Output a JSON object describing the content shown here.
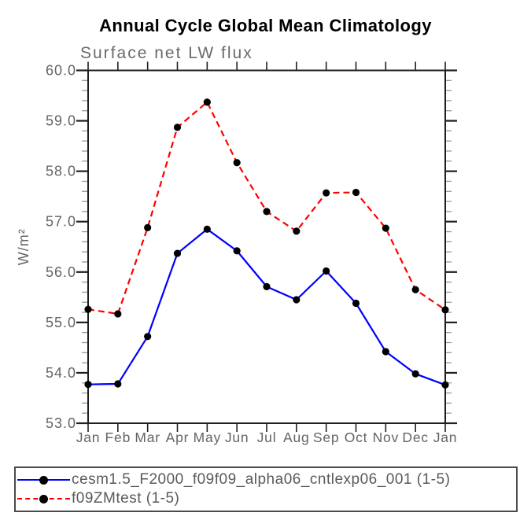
{
  "title": "Annual Cycle Global Mean Climatology",
  "subtitle": "Surface net LW flux",
  "ylabel": "W/m²",
  "legend": {
    "items": [
      {
        "label": "cesm1.5_F2000_f09f09_alpha06_cntlexp06_001 (1-5)",
        "color": "#0000ff",
        "style": "solid"
      },
      {
        "label": "f09ZMtest (1-5)",
        "color": "#ff0000",
        "style": "dashed"
      }
    ]
  },
  "chart_data": {
    "type": "line",
    "title": "Annual Cycle Global Mean Climatology",
    "subtitle": "Surface net LW flux",
    "ylabel": "W/m²",
    "xlabel": "",
    "categories": [
      "Jan",
      "Feb",
      "Mar",
      "Apr",
      "May",
      "Jun",
      "Jul",
      "Aug",
      "Sep",
      "Oct",
      "Nov",
      "Dec",
      "Jan"
    ],
    "series": [
      {
        "name": "cesm1.5_F2000_f09f09_alpha06_cntlexp06_001 (1-5)",
        "color": "#0000ff",
        "style": "solid",
        "values": [
          53.77,
          53.78,
          54.72,
          56.37,
          56.85,
          56.42,
          55.71,
          55.45,
          56.02,
          55.38,
          54.42,
          53.98,
          53.76
        ]
      },
      {
        "name": "f09ZMtest (1-5)",
        "color": "#ff0000",
        "style": "dashed",
        "values": [
          55.26,
          55.17,
          56.88,
          58.87,
          59.37,
          58.17,
          57.2,
          56.81,
          57.57,
          57.58,
          56.87,
          55.65,
          55.25
        ]
      }
    ],
    "ylim": [
      53.0,
      60.0
    ],
    "ytick_major": 1.0,
    "ytick_minor": 0.2,
    "grid": false,
    "legend_position": "bottom",
    "marker": "filled-circle",
    "marker_color": "#000000"
  },
  "colors": {
    "axis": "#1f1f1f",
    "minor_tick": "#999999",
    "label_gray": "#646464"
  }
}
